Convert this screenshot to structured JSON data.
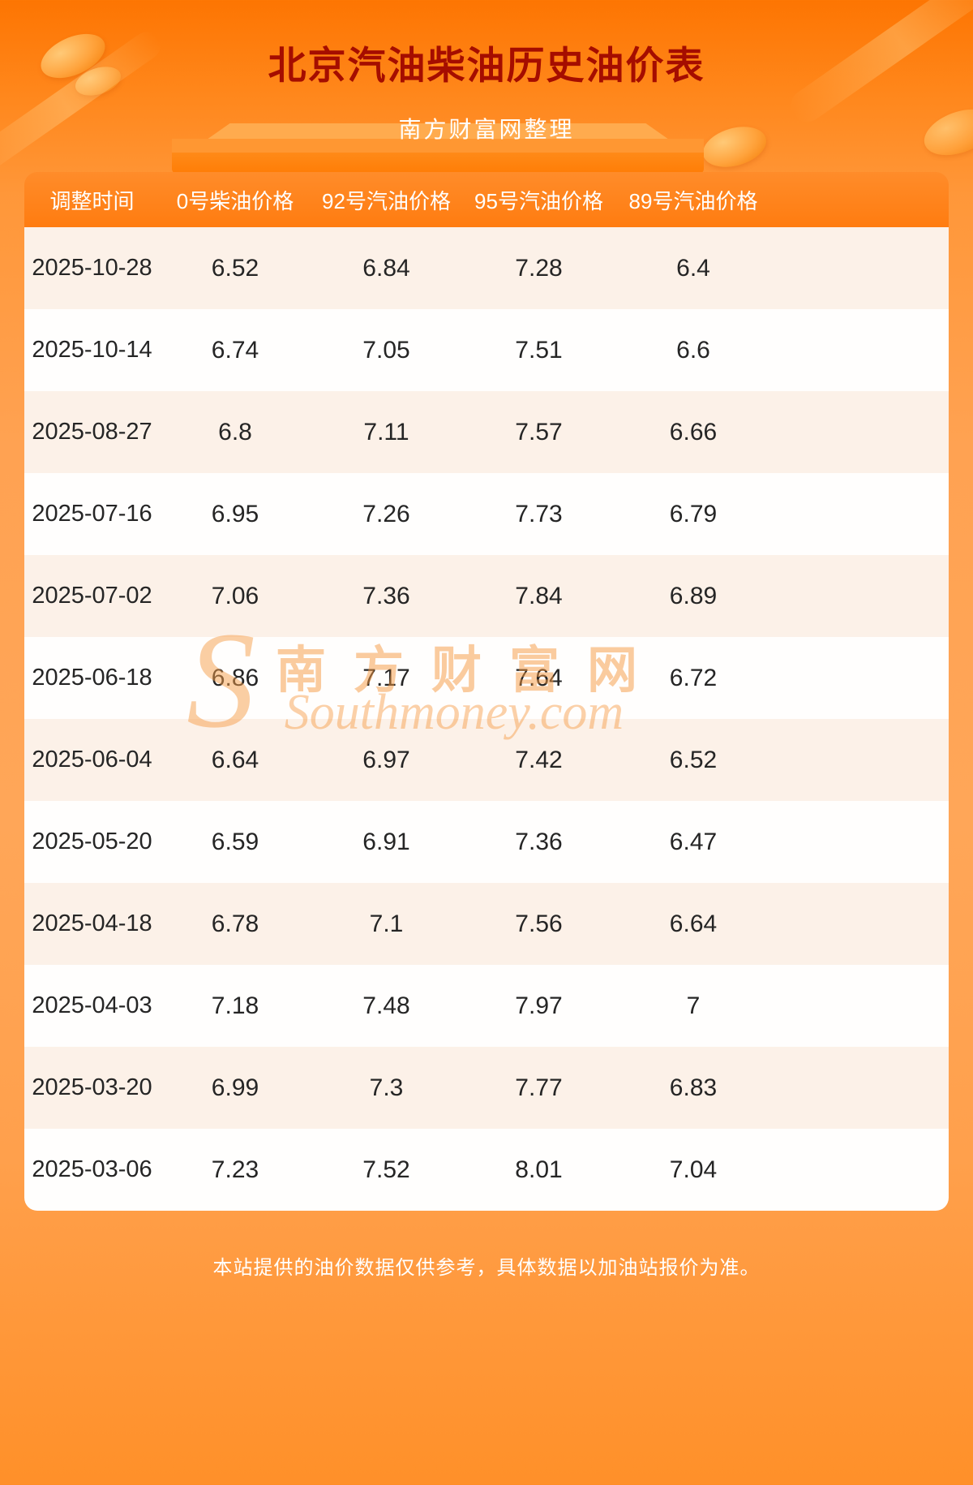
{
  "page": {
    "title": "北京汽油柴油历史油价表",
    "subtitle": "南方财富网整理",
    "footer_note": "本站提供的油价数据仅供参考，具体数据以加油站报价为准。"
  },
  "watermark": {
    "initial": "S",
    "cn": "南方财富网",
    "en": "Southmoney.com"
  },
  "colors": {
    "title_text": "#a50d00",
    "header_bg": "#ff7c10",
    "row_alt_bg": "#fcf1e8",
    "row_plain_bg": "#fffefd",
    "background_accent": "#ff9739",
    "footer_text": "#ffffff"
  },
  "chart_data": {
    "type": "table",
    "title": "北京汽油柴油历史油价表",
    "columns": [
      "调整时间",
      "0号柴油价格",
      "92号汽油价格",
      "95号汽油价格",
      "89号汽油价格"
    ],
    "rows": [
      [
        "2025-10-28",
        "6.52",
        "6.84",
        "7.28",
        "6.4"
      ],
      [
        "2025-10-14",
        "6.74",
        "7.05",
        "7.51",
        "6.6"
      ],
      [
        "2025-08-27",
        "6.8",
        "7.11",
        "7.57",
        "6.66"
      ],
      [
        "2025-07-16",
        "6.95",
        "7.26",
        "7.73",
        "6.79"
      ],
      [
        "2025-07-02",
        "7.06",
        "7.36",
        "7.84",
        "6.89"
      ],
      [
        "2025-06-18",
        "6.86",
        "7.17",
        "7.64",
        "6.72"
      ],
      [
        "2025-06-04",
        "6.64",
        "6.97",
        "7.42",
        "6.52"
      ],
      [
        "2025-05-20",
        "6.59",
        "6.91",
        "7.36",
        "6.47"
      ],
      [
        "2025-04-18",
        "6.78",
        "7.1",
        "7.56",
        "6.64"
      ],
      [
        "2025-04-03",
        "7.18",
        "7.48",
        "7.97",
        "7"
      ],
      [
        "2025-03-20",
        "6.99",
        "7.3",
        "7.77",
        "6.83"
      ],
      [
        "2025-03-06",
        "7.23",
        "7.52",
        "8.01",
        "7.04"
      ]
    ]
  }
}
